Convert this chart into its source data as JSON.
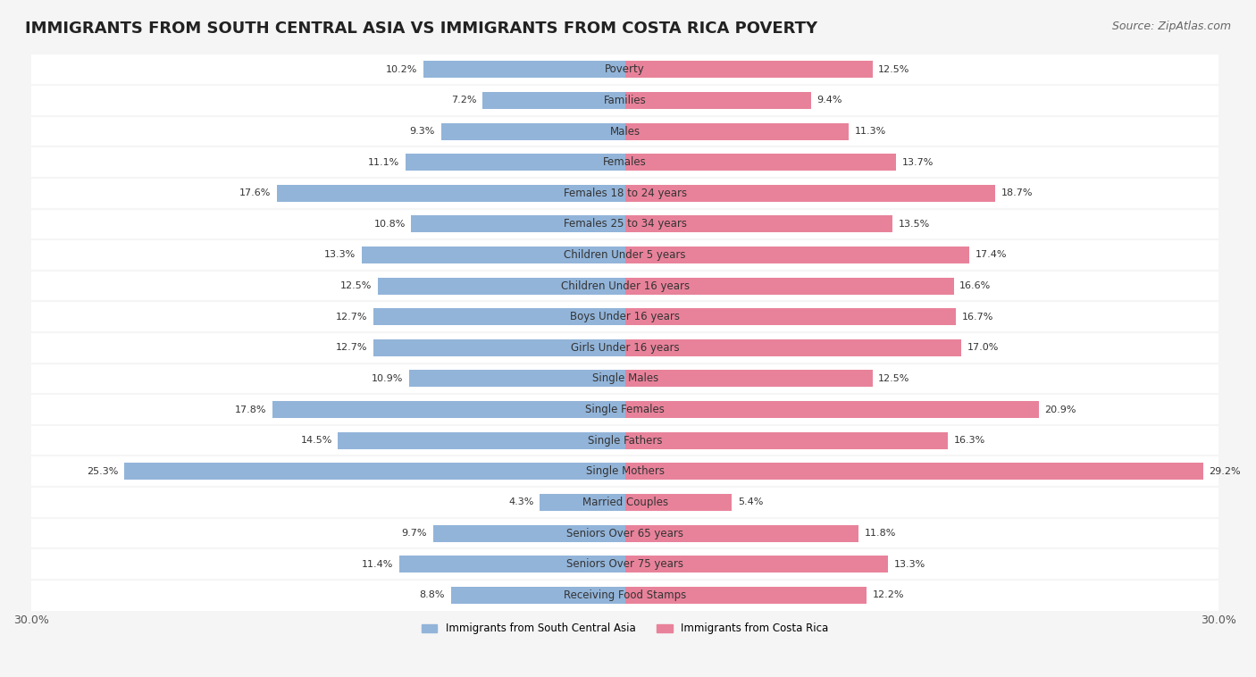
{
  "title": "IMMIGRANTS FROM SOUTH CENTRAL ASIA VS IMMIGRANTS FROM COSTA RICA POVERTY",
  "source": "Source: ZipAtlas.com",
  "categories": [
    "Poverty",
    "Families",
    "Males",
    "Females",
    "Females 18 to 24 years",
    "Females 25 to 34 years",
    "Children Under 5 years",
    "Children Under 16 years",
    "Boys Under 16 years",
    "Girls Under 16 years",
    "Single Males",
    "Single Females",
    "Single Fathers",
    "Single Mothers",
    "Married Couples",
    "Seniors Over 65 years",
    "Seniors Over 75 years",
    "Receiving Food Stamps"
  ],
  "left_values": [
    10.2,
    7.2,
    9.3,
    11.1,
    17.6,
    10.8,
    13.3,
    12.5,
    12.7,
    12.7,
    10.9,
    17.8,
    14.5,
    25.3,
    4.3,
    9.7,
    11.4,
    8.8
  ],
  "right_values": [
    12.5,
    9.4,
    11.3,
    13.7,
    18.7,
    13.5,
    17.4,
    16.6,
    16.7,
    17.0,
    12.5,
    20.9,
    16.3,
    29.2,
    5.4,
    11.8,
    13.3,
    12.2
  ],
  "left_color": "#92b4d9",
  "right_color": "#e8829a",
  "left_label": "Immigrants from South Central Asia",
  "right_label": "Immigrants from Costa Rica",
  "xlim": 30.0,
  "background_color": "#f5f5f5",
  "bar_background_color": "#ffffff",
  "title_fontsize": 13,
  "source_fontsize": 9,
  "label_fontsize": 8.5,
  "value_fontsize": 8,
  "bar_height": 0.55,
  "axis_label_fontsize": 9
}
